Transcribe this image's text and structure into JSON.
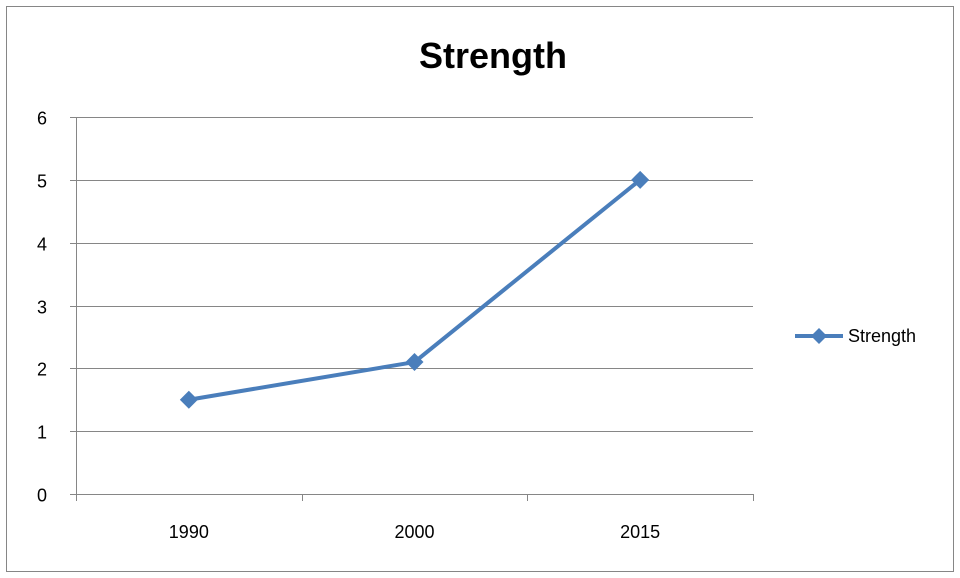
{
  "chart_data": {
    "type": "line",
    "title": "Strength",
    "xlabel": "",
    "ylabel": "",
    "categories": [
      "1990",
      "2000",
      "2015"
    ],
    "series": [
      {
        "name": "Strength",
        "values": [
          1.5,
          2.1,
          5.0
        ]
      }
    ],
    "ylim": [
      0,
      6
    ],
    "yticks": [
      0,
      1,
      2,
      3,
      4,
      5,
      6
    ],
    "grid": true,
    "legend_position": "right",
    "colors": {
      "series": "#4A7EBB",
      "grid": "#868686",
      "axis": "#868686",
      "frame": "#868686"
    }
  }
}
